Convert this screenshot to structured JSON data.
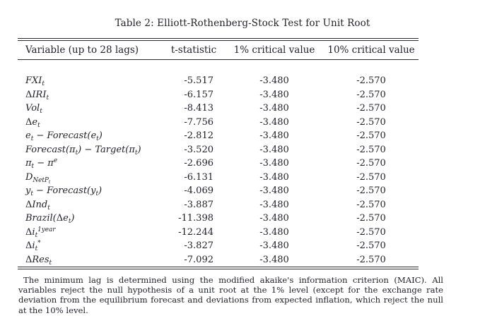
{
  "colors": {
    "ink": "#1f1f2a",
    "rule": "#2a2a32",
    "background": "#ffffff"
  },
  "title": "Table 2: Elliott-Rothenberg-Stock Test for Unit Root",
  "table": {
    "headers": [
      "Variable (up to 28 lags)",
      "t-statistic",
      "1% critical value",
      "10% critical value"
    ],
    "rows": [
      {
        "variable": "FXI_{t}",
        "t_statistic": "-5.517",
        "crit_1pct": "-3.480",
        "crit_10pct": "-2.570"
      },
      {
        "variable": "ΔIRI_{t}",
        "t_statistic": "-6.157",
        "crit_1pct": "-3.480",
        "crit_10pct": "-2.570"
      },
      {
        "variable": "Vol_{t}",
        "t_statistic": "-8.413",
        "crit_1pct": "-3.480",
        "crit_10pct": "-2.570"
      },
      {
        "variable": "Δe_{t}",
        "t_statistic": "-7.756",
        "crit_1pct": "-3.480",
        "crit_10pct": "-2.570"
      },
      {
        "variable": "e_{t} − Forecast(e_{t})",
        "t_statistic": "-2.812",
        "crit_1pct": "-3.480",
        "crit_10pct": "-2.570"
      },
      {
        "variable": "Forecast(π_{t}) − Target(π_{t})",
        "t_statistic": "-3.520",
        "crit_1pct": "-3.480",
        "crit_10pct": "-2.570"
      },
      {
        "variable": "π_{t} − π^{e}",
        "t_statistic": "-2.696",
        "crit_1pct": "-3.480",
        "crit_10pct": "-2.570"
      },
      {
        "variable": "D_{NetP_{t}}",
        "t_statistic": "-6.131",
        "crit_1pct": "-3.480",
        "crit_10pct": "-2.570"
      },
      {
        "variable": "y_{t} − Forecast(y_{t})",
        "t_statistic": "-4.069",
        "crit_1pct": "-3.480",
        "crit_10pct": "-2.570"
      },
      {
        "variable": "ΔInd_{t}",
        "t_statistic": "-3.887",
        "crit_1pct": "-3.480",
        "crit_10pct": "-2.570"
      },
      {
        "variable": "Brazil(Δe_{t})",
        "t_statistic": "-11.398",
        "crit_1pct": "-3.480",
        "crit_10pct": "-2.570"
      },
      {
        "variable": "Δi_{t}^{1year}",
        "t_statistic": "-12.244",
        "crit_1pct": "-3.480",
        "crit_10pct": "-2.570"
      },
      {
        "variable": "Δi_{t}^{*}",
        "t_statistic": "-3.827",
        "crit_1pct": "-3.480",
        "crit_10pct": "-2.570"
      },
      {
        "variable": "ΔRes_{t}",
        "t_statistic": "-7.092",
        "crit_1pct": "-3.480",
        "crit_10pct": "-2.570"
      }
    ]
  },
  "footnote": "The minimum lag is determined using the modified akaike's information criterion (MAIC). All variables reject the null hypothesis of a unit root at the 1% level (except for the exchange rate deviation from the equilibrium forecast and deviations from expected inflation, which reject the null at the 10% level."
}
